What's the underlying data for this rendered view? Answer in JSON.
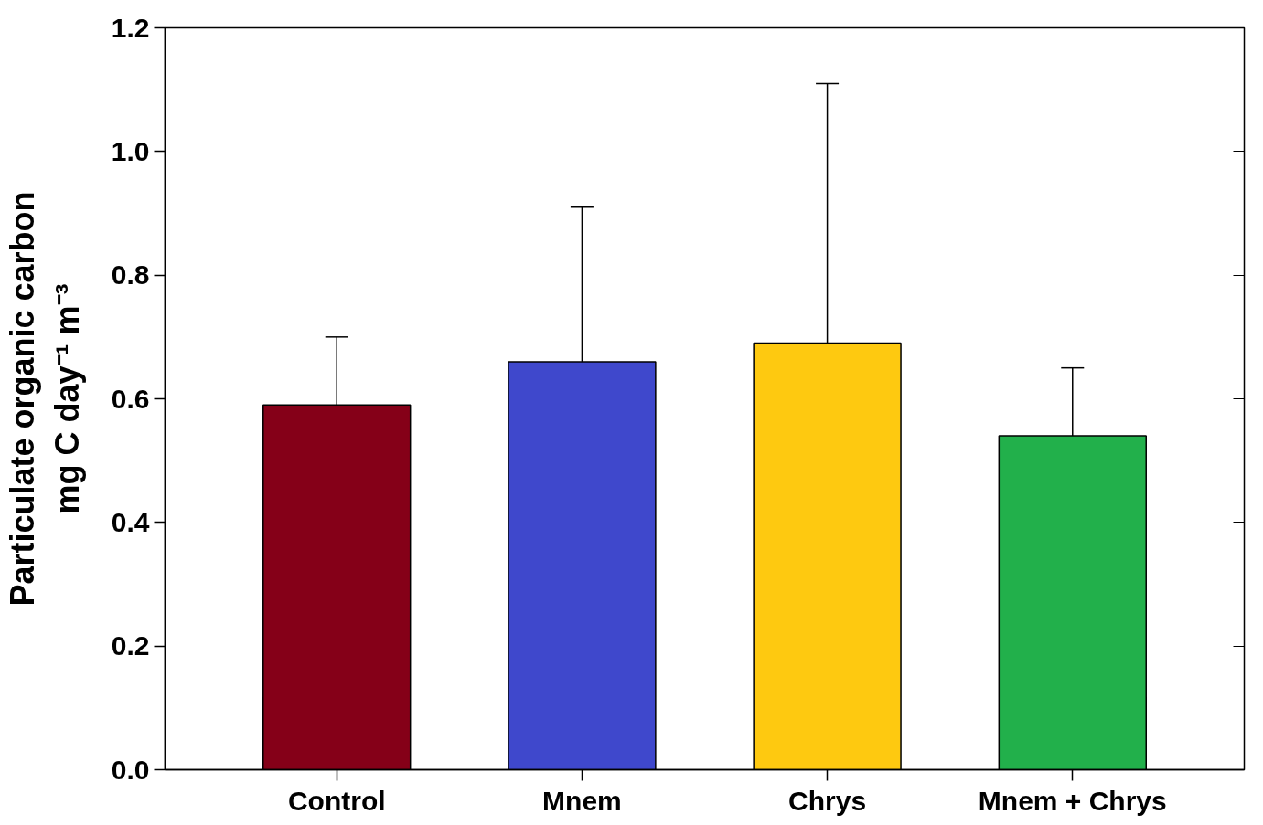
{
  "chart_data": {
    "type": "bar",
    "ylabel": "Particulate organic carbon\nmg C day⁻¹ m⁻³",
    "categories": [
      "Control",
      "Mnem",
      "Chrys",
      "Mnem + Chrys"
    ],
    "values": [
      0.59,
      0.66,
      0.69,
      0.54
    ],
    "colors": [
      "#850018",
      "#3f48cc",
      "#fec910",
      "#22b04b"
    ],
    "errors": [
      [
        0.59,
        0.7
      ],
      [
        0.66,
        0.91
      ],
      [
        0.69,
        1.11
      ],
      [
        0.54,
        0.65
      ]
    ],
    "ylim": [
      0,
      1.2
    ],
    "yticks": [
      {
        "value": 0,
        "label": "0.0"
      },
      {
        "value": 0.2,
        "label": "0.2"
      },
      {
        "value": 0.4,
        "label": "0.4"
      },
      {
        "value": 0.6,
        "label": "0.6"
      },
      {
        "value": 0.8,
        "label": "0.8"
      },
      {
        "value": 1.0,
        "label": "1.0"
      },
      {
        "value": 1.2,
        "label": "1.2"
      }
    ],
    "grid": false
  }
}
